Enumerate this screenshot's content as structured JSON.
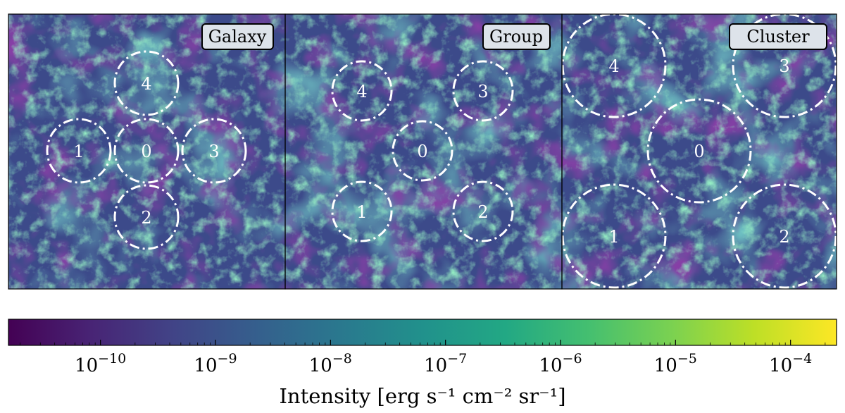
{
  "panels": [
    {
      "tag": "Galaxy",
      "regions": [
        {
          "label": "0"
        },
        {
          "label": "1"
        },
        {
          "label": "2"
        },
        {
          "label": "3"
        },
        {
          "label": "4"
        }
      ]
    },
    {
      "tag": "Group",
      "regions": [
        {
          "label": "0"
        },
        {
          "label": "1"
        },
        {
          "label": "2"
        },
        {
          "label": "3"
        },
        {
          "label": "4"
        }
      ]
    },
    {
      "tag": "Cluster",
      "regions": [
        {
          "label": "0"
        },
        {
          "label": "1"
        },
        {
          "label": "2"
        },
        {
          "label": "3"
        },
        {
          "label": "4"
        }
      ]
    }
  ],
  "colorbar": {
    "colormap": "viridis",
    "colors": [
      "#440154",
      "#482475",
      "#414487",
      "#355f8d",
      "#2a788e",
      "#21918c",
      "#22a884",
      "#44bf70",
      "#7ad151",
      "#bddf26",
      "#fde725"
    ],
    "range_log10": [
      -10.8,
      -3.6
    ],
    "tick_mantissa": "10",
    "tick_exponents": [
      "−10",
      "−9",
      "−8",
      "−7",
      "−6",
      "−5",
      "−4"
    ],
    "tick_values_log10": [
      -10,
      -9,
      -8,
      -7,
      -6,
      -5,
      -4
    ],
    "label_main": "Intensity ",
    "label_unit": "[erg s⁻¹ cm⁻² sr⁻¹]"
  }
}
